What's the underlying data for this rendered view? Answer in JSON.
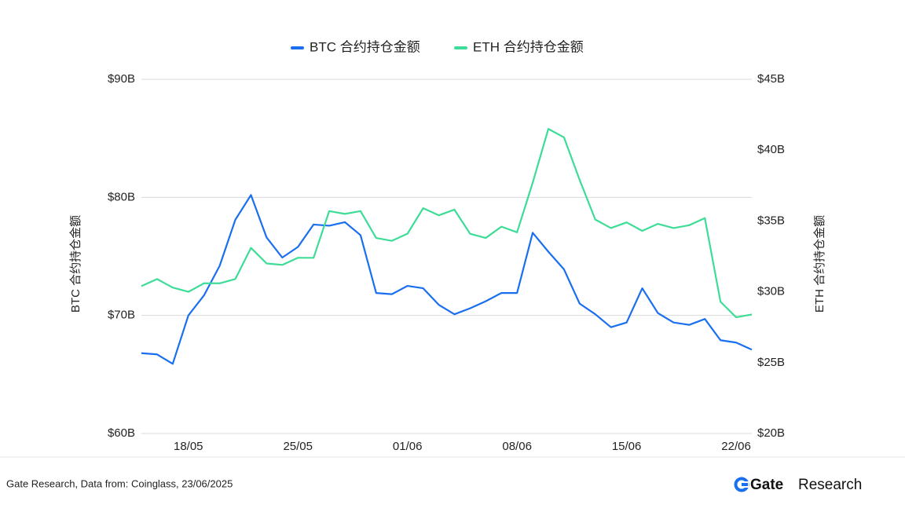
{
  "chart_data": {
    "type": "line",
    "categories": [
      null,
      null,
      null,
      "18/05",
      null,
      null,
      null,
      null,
      null,
      null,
      "25/05",
      null,
      null,
      null,
      null,
      null,
      null,
      "01/06",
      null,
      null,
      null,
      null,
      null,
      null,
      "08/06",
      null,
      null,
      null,
      null,
      null,
      null,
      "15/06",
      null,
      null,
      null,
      null,
      null,
      null,
      "22/06",
      null
    ],
    "series": [
      {
        "name": "BTC 合约持仓金额",
        "color": "#1a6ff0",
        "axis": "y",
        "values": [
          66.8,
          66.7,
          65.9,
          70.0,
          71.7,
          74.2,
          78.1,
          80.2,
          76.6,
          74.9,
          75.8,
          77.7,
          77.6,
          77.9,
          76.8,
          71.9,
          71.8,
          72.5,
          72.3,
          70.9,
          70.1,
          70.6,
          71.2,
          71.9,
          71.9,
          77.0,
          75.4,
          73.9,
          71.0,
          70.1,
          69.0,
          69.4,
          72.3,
          70.2,
          69.4,
          69.2,
          69.7,
          67.9,
          67.7,
          67.1
        ]
      },
      {
        "name": "ETH 合约持仓金额",
        "color": "#3ddc97",
        "axis": "y2",
        "values": [
          30.4,
          30.9,
          30.3,
          30.0,
          30.6,
          30.6,
          30.9,
          33.1,
          32.0,
          31.9,
          32.4,
          32.4,
          35.7,
          35.5,
          35.7,
          33.8,
          33.6,
          34.1,
          35.9,
          35.4,
          35.8,
          34.1,
          33.8,
          34.6,
          34.2,
          37.7,
          41.5,
          40.9,
          37.9,
          35.1,
          34.5,
          34.9,
          34.3,
          34.8,
          34.5,
          34.7,
          35.2,
          29.3,
          28.2,
          28.4
        ]
      }
    ],
    "ylabel": "BTC 合约持仓金额",
    "y2label": "ETH 合约持仓金额",
    "ylim": [
      60,
      90
    ],
    "yticks": [
      {
        "value": 60,
        "label": "$60B"
      },
      {
        "value": 70,
        "label": "$70B"
      },
      {
        "value": 80,
        "label": "$80B"
      },
      {
        "value": 90,
        "label": "$90B"
      }
    ],
    "y2lim": [
      20,
      45
    ],
    "y2ticks": [
      {
        "value": 20,
        "label": "$20B"
      },
      {
        "value": 25,
        "label": "$25B"
      },
      {
        "value": 30,
        "label": "$30B"
      },
      {
        "value": 35,
        "label": "$35B"
      },
      {
        "value": 40,
        "label": "$40B"
      },
      {
        "value": 45,
        "label": "$45B"
      }
    ],
    "grid": true,
    "legend": "top"
  },
  "footer": {
    "source": "Gate Research, Data from: Coinglass, 23/06/2025",
    "brand": "Gate",
    "brand_suffix": "Research"
  }
}
